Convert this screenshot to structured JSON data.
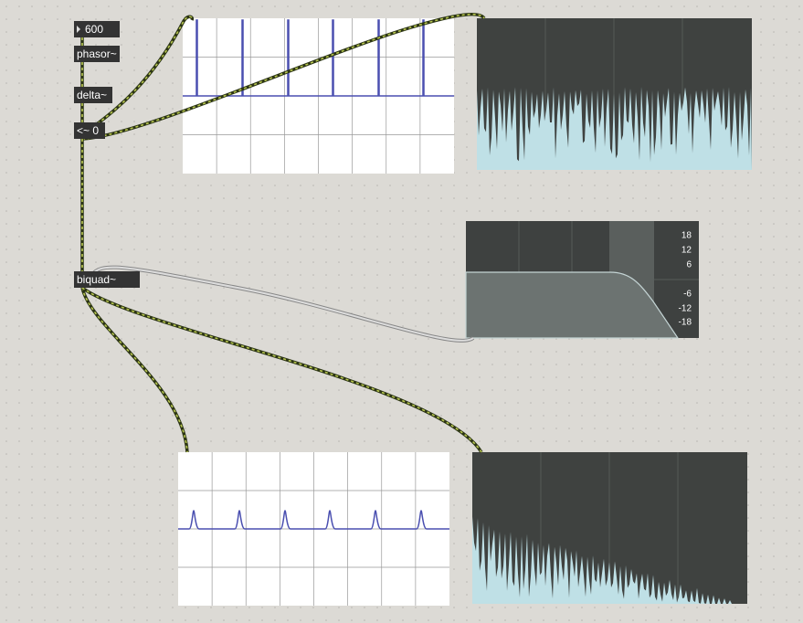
{
  "objects": {
    "number_box": "600",
    "phasor": "phasor~",
    "delta": "delta~",
    "less_than": "<~ 0",
    "biquad": "biquad~"
  },
  "filtergraph": {
    "gain_labels": [
      "18",
      "12",
      "6",
      "-6",
      "-12",
      "-18"
    ]
  }
}
